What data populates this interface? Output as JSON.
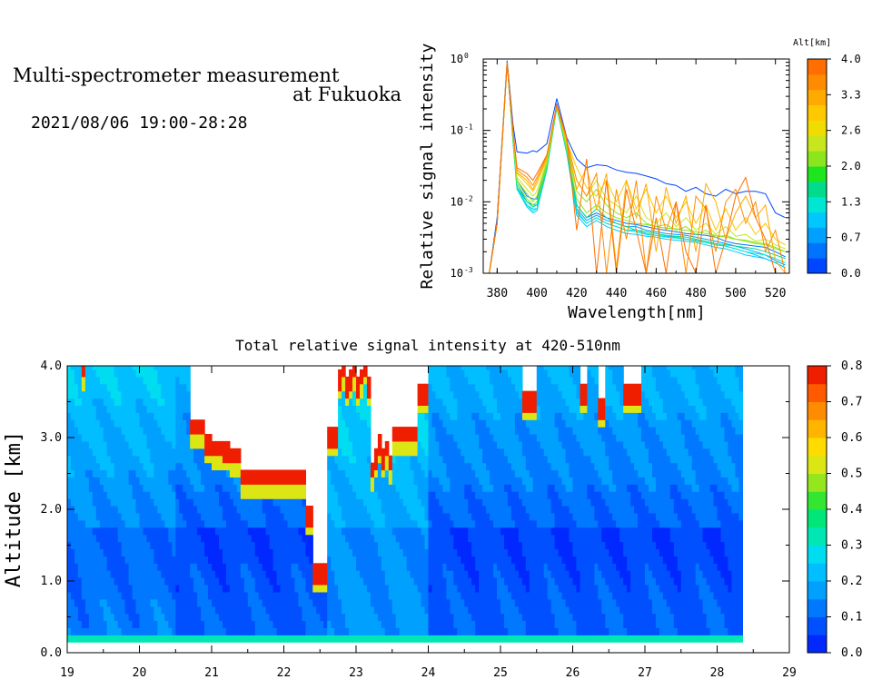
{
  "header": {
    "title_line1": "Multi-spectrometer measurement",
    "title_line2": "at Fukuoka",
    "datetime": "2021/08/06 19:00-28:28"
  },
  "colors": {
    "alt_scale": [
      "#0046ff",
      "#0073ff",
      "#00a0ff",
      "#00c8ff",
      "#00e6d2",
      "#00dc8c",
      "#1ee61e",
      "#8ce61e",
      "#c8e61e",
      "#f0dc00",
      "#ffc800",
      "#ffaa00",
      "#ff8c00",
      "#ff6e00"
    ],
    "intensity_scale": [
      "#0028ff",
      "#0050ff",
      "#0078ff",
      "#00a0ff",
      "#00beff",
      "#00dcf0",
      "#00e6b4",
      "#00e678",
      "#32e632",
      "#96e61e",
      "#dce614",
      "#ffdc00",
      "#ffb400",
      "#ff8c00",
      "#ff5a00",
      "#f01e00"
    ]
  },
  "chart_data": [
    {
      "type": "line",
      "title": "",
      "xlabel": "Wavelength[nm]",
      "ylabel": "Relative signal intensity",
      "xlim": [
        373,
        527
      ],
      "ylim": [
        0.001,
        1
      ],
      "y_scale": "log",
      "x_ticks": [
        380,
        400,
        420,
        440,
        460,
        480,
        500,
        520
      ],
      "y_ticks": [
        {
          "value": 0.001,
          "label": "10",
          "exp": "-3"
        },
        {
          "value": 0.01,
          "label": "10",
          "exp": "-2"
        },
        {
          "value": 0.1,
          "label": "10",
          "exp": "-1"
        },
        {
          "value": 1,
          "label": "10",
          "exp": "0"
        }
      ],
      "x": [
        373,
        376,
        380,
        385,
        388,
        390,
        395,
        398,
        400,
        405,
        410,
        415,
        420,
        425,
        430,
        435,
        440,
        445,
        450,
        455,
        460,
        465,
        470,
        475,
        480,
        485,
        490,
        495,
        500,
        505,
        510,
        515,
        520,
        525
      ],
      "series": [
        {
          "alt": 0.0,
          "values": [
            0.001,
            0.001,
            0.006,
            0.95,
            0.12,
            0.05,
            0.048,
            0.052,
            0.05,
            0.065,
            0.28,
            0.08,
            0.04,
            0.03,
            0.033,
            0.032,
            0.028,
            0.026,
            0.025,
            0.023,
            0.021,
            0.018,
            0.017,
            0.014,
            0.016,
            0.013,
            0.012,
            0.015,
            0.013,
            0.014,
            0.014,
            0.013,
            0.007,
            0.006
          ]
        },
        {
          "alt": 0.3,
          "values": [
            0.001,
            0.001,
            0.005,
            0.9,
            0.09,
            0.02,
            0.012,
            0.011,
            0.011,
            0.035,
            0.24,
            0.06,
            0.009,
            0.006,
            0.007,
            0.006,
            0.0055,
            0.005,
            0.0048,
            0.0045,
            0.0042,
            0.004,
            0.0038,
            0.0036,
            0.0035,
            0.0034,
            0.0032,
            0.0028,
            0.0026,
            0.0025,
            0.0024,
            0.0023,
            0.002,
            0.0017
          ]
        },
        {
          "alt": 0.5,
          "values": [
            0.001,
            0.001,
            0.005,
            0.9,
            0.08,
            0.018,
            0.01,
            0.009,
            0.009,
            0.032,
            0.23,
            0.055,
            0.008,
            0.0055,
            0.0065,
            0.0055,
            0.005,
            0.0045,
            0.0045,
            0.004,
            0.0038,
            0.0036,
            0.0035,
            0.0034,
            0.0032,
            0.003,
            0.0028,
            0.0026,
            0.0024,
            0.0022,
            0.002,
            0.0018,
            0.0015,
            0.0013
          ]
        },
        {
          "alt": 0.8,
          "values": [
            0.001,
            0.001,
            0.005,
            0.9,
            0.075,
            0.016,
            0.009,
            0.008,
            0.008,
            0.03,
            0.22,
            0.05,
            0.007,
            0.005,
            0.006,
            0.005,
            0.0045,
            0.004,
            0.004,
            0.0036,
            0.0034,
            0.0033,
            0.0032,
            0.003,
            0.0029,
            0.0027,
            0.0025,
            0.0024,
            0.0022,
            0.002,
            0.0018,
            0.0016,
            0.0014,
            0.0012
          ]
        },
        {
          "alt": 1.0,
          "values": [
            0.001,
            0.001,
            0.005,
            0.88,
            0.07,
            0.015,
            0.0085,
            0.007,
            0.0075,
            0.028,
            0.21,
            0.048,
            0.0065,
            0.0045,
            0.0055,
            0.0045,
            0.004,
            0.0036,
            0.0035,
            0.0033,
            0.0032,
            0.003,
            0.0029,
            0.0028,
            0.0027,
            0.0025,
            0.0023,
            0.0022,
            0.002,
            0.0018,
            0.0017,
            0.0016,
            0.0014,
            0.0012
          ]
        },
        {
          "alt": 1.3,
          "values": [
            0.001,
            0.001,
            0.005,
            0.88,
            0.07,
            0.015,
            0.009,
            0.0075,
            0.008,
            0.028,
            0.21,
            0.05,
            0.0075,
            0.005,
            0.006,
            0.005,
            0.0045,
            0.004,
            0.0038,
            0.0035,
            0.0034,
            0.0032,
            0.0031,
            0.003,
            0.0028,
            0.0027,
            0.0025,
            0.0024,
            0.0022,
            0.002,
            0.0019,
            0.0018,
            0.0016,
            0.0014
          ]
        },
        {
          "alt": 1.6,
          "values": [
            0.001,
            0.001,
            0.005,
            0.88,
            0.075,
            0.016,
            0.01,
            0.0085,
            0.009,
            0.03,
            0.21,
            0.052,
            0.009,
            0.006,
            0.008,
            0.006,
            0.005,
            0.0045,
            0.004,
            0.0038,
            0.0036,
            0.0034,
            0.0033,
            0.0032,
            0.003,
            0.0028,
            0.0026,
            0.0025,
            0.0024,
            0.0023,
            0.0022,
            0.002,
            0.0018,
            0.0016
          ]
        },
        {
          "alt": 2.0,
          "values": [
            0.001,
            0.001,
            0.005,
            0.88,
            0.08,
            0.018,
            0.011,
            0.009,
            0.01,
            0.032,
            0.22,
            0.055,
            0.011,
            0.007,
            0.009,
            0.007,
            0.006,
            0.0055,
            0.005,
            0.0048,
            0.0045,
            0.0043,
            0.0042,
            0.004,
            0.0038,
            0.0036,
            0.0034,
            0.0032,
            0.003,
            0.0028,
            0.0026,
            0.0025,
            0.0022,
            0.002
          ]
        },
        {
          "alt": 2.3,
          "values": [
            0.001,
            0.001,
            0.005,
            0.88,
            0.08,
            0.02,
            0.013,
            0.01,
            0.012,
            0.035,
            0.22,
            0.06,
            0.014,
            0.01,
            0.015,
            0.009,
            0.007,
            0.006,
            0.007,
            0.005,
            0.0045,
            0.0048,
            0.004,
            0.0045,
            0.0035,
            0.004,
            0.0032,
            0.0034,
            0.003,
            0.0029,
            0.0027,
            0.0026,
            0.0023,
            0.002
          ]
        },
        {
          "alt": 2.6,
          "values": [
            0.001,
            0.001,
            0.005,
            0.88,
            0.085,
            0.022,
            0.015,
            0.012,
            0.014,
            0.038,
            0.22,
            0.065,
            0.02,
            0.012,
            0.02,
            0.011,
            0.009,
            0.007,
            0.012,
            0.006,
            0.005,
            0.007,
            0.0045,
            0.006,
            0.004,
            0.005,
            0.0035,
            0.0045,
            0.0033,
            0.0035,
            0.0028,
            0.003,
            0.0025,
            0.0022
          ]
        },
        {
          "alt": 3.0,
          "values": [
            0.001,
            0.001,
            0.005,
            0.88,
            0.09,
            0.025,
            0.018,
            0.014,
            0.018,
            0.04,
            0.22,
            0.07,
            0.03,
            0.016,
            0.012,
            0.02,
            0.01,
            0.02,
            0.008,
            0.015,
            0.007,
            0.012,
            0.006,
            0.01,
            0.005,
            0.009,
            0.004,
            0.008,
            0.004,
            0.006,
            0.0035,
            0.005,
            0.003,
            0.0025
          ]
        },
        {
          "alt": 3.3,
          "values": [
            0.001,
            0.001,
            0.005,
            0.88,
            0.09,
            0.026,
            0.02,
            0.015,
            0.02,
            0.042,
            0.22,
            0.07,
            0.015,
            0.03,
            0.008,
            0.025,
            0.0012,
            0.02,
            0.006,
            0.018,
            0.002,
            0.016,
            0.005,
            0.012,
            0.002,
            0.018,
            0.01,
            0.003,
            0.007,
            0.012,
            0.006,
            0.009,
            0.0015,
            0.001
          ]
        },
        {
          "alt": 3.6,
          "values": [
            0.001,
            0.001,
            0.005,
            0.88,
            0.095,
            0.028,
            0.022,
            0.017,
            0.022,
            0.044,
            0.23,
            0.075,
            0.02,
            0.012,
            0.025,
            0.001,
            0.015,
            0.003,
            0.02,
            0.001,
            0.012,
            0.004,
            0.01,
            0.001,
            0.012,
            0.008,
            0.002,
            0.01,
            0.015,
            0.005,
            0.01,
            0.002,
            0.004,
            0.001
          ]
        },
        {
          "alt": 4.0,
          "values": [
            0.001,
            0.001,
            0.005,
            0.88,
            0.1,
            0.03,
            0.025,
            0.02,
            0.025,
            0.045,
            0.23,
            0.08,
            0.004,
            0.04,
            0.001,
            0.02,
            0.001,
            0.015,
            0.004,
            0.001,
            0.006,
            0.001,
            0.01,
            0.002,
            0.001,
            0.009,
            0.001,
            0.003,
            0.012,
            0.022,
            0.006,
            0.003,
            0.001,
            0.001
          ]
        }
      ],
      "colorbar": {
        "label": "Alt[km]",
        "min": 0.0,
        "max": 4.0,
        "tick_labels": [
          "0.0",
          "0.7",
          "1.3",
          "2.0",
          "2.6",
          "3.3",
          "4.0"
        ]
      }
    },
    {
      "type": "heatmap",
      "title": "Total relative signal intensity at 420-510nm",
      "xlabel": "",
      "ylabel": "Altitude [km]",
      "xlim": [
        19,
        29
      ],
      "ylim": [
        0,
        4
      ],
      "x_tick_labels": [
        "19",
        "20",
        "21",
        "22",
        "23",
        "24",
        "25",
        "26",
        "27",
        "28",
        "29"
      ],
      "y_tick_labels": [
        "0.0",
        "1.0",
        "2.0",
        "3.0",
        "4.0"
      ],
      "data_extent": {
        "t_start": 19.0,
        "t_end": 28.33,
        "alt_min": 0.15,
        "alt_max": 4.0
      },
      "colorbar": {
        "min": 0.0,
        "max": 0.8,
        "tick_labels": [
          "0.0",
          "0.1",
          "0.2",
          "0.3",
          "0.4",
          "0.5",
          "0.6",
          "0.7",
          "0.8"
        ]
      },
      "cloud_regions": [
        {
          "t": [
            20.7,
            22.35
          ],
          "base_km": [
            2.4,
            3.0,
            4.0
          ],
          "note": "cloud"
        },
        {
          "t": [
            22.4,
            22.6
          ],
          "base_km": [
            1.0
          ],
          "note": "cloud"
        },
        {
          "t": [
            23.2,
            23.55
          ],
          "base_km": [
            2.4
          ],
          "note": "cloud"
        },
        {
          "t": [
            23.55,
            23.9
          ],
          "base_km": [
            3.0
          ],
          "note": "cloud"
        },
        {
          "t": [
            25.3,
            25.5
          ],
          "base_km": [
            3.4
          ],
          "note": "cloud"
        },
        {
          "t": [
            26.7,
            26.95
          ],
          "base_km": [
            3.5
          ],
          "note": "cloud"
        }
      ]
    }
  ]
}
